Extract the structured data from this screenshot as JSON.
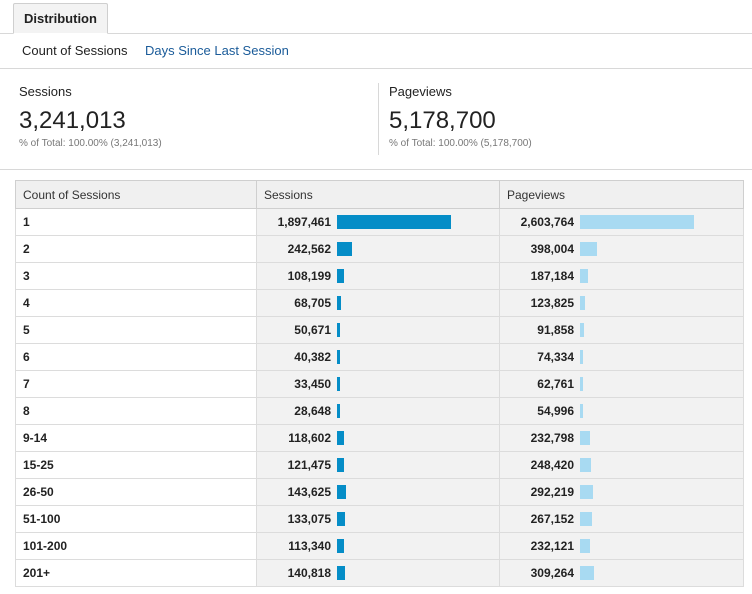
{
  "tab": {
    "label": "Distribution"
  },
  "subnav": {
    "active": "Count of Sessions",
    "link": "Days Since Last Session"
  },
  "summary": {
    "sessions": {
      "label": "Sessions",
      "value": "3,241,013",
      "total": "% of Total: 100.00% (3,241,013)"
    },
    "pageviews": {
      "label": "Pageviews",
      "value": "5,178,700",
      "total": "% of Total: 100.00% (5,178,700)"
    }
  },
  "table": {
    "headers": [
      "Count of Sessions",
      "Sessions",
      "Pageviews"
    ],
    "max_sessions": 1897461,
    "max_pageviews": 2603764,
    "rows": [
      {
        "label": "1",
        "sessions": "1,897,461",
        "sessions_n": 1897461,
        "pageviews": "2,603,764",
        "pageviews_n": 2603764
      },
      {
        "label": "2",
        "sessions": "242,562",
        "sessions_n": 242562,
        "pageviews": "398,004",
        "pageviews_n": 398004
      },
      {
        "label": "3",
        "sessions": "108,199",
        "sessions_n": 108199,
        "pageviews": "187,184",
        "pageviews_n": 187184
      },
      {
        "label": "4",
        "sessions": "68,705",
        "sessions_n": 68705,
        "pageviews": "123,825",
        "pageviews_n": 123825
      },
      {
        "label": "5",
        "sessions": "50,671",
        "sessions_n": 50671,
        "pageviews": "91,858",
        "pageviews_n": 91858
      },
      {
        "label": "6",
        "sessions": "40,382",
        "sessions_n": 40382,
        "pageviews": "74,334",
        "pageviews_n": 74334
      },
      {
        "label": "7",
        "sessions": "33,450",
        "sessions_n": 33450,
        "pageviews": "62,761",
        "pageviews_n": 62761
      },
      {
        "label": "8",
        "sessions": "28,648",
        "sessions_n": 28648,
        "pageviews": "54,996",
        "pageviews_n": 54996
      },
      {
        "label": "9-14",
        "sessions": "118,602",
        "sessions_n": 118602,
        "pageviews": "232,798",
        "pageviews_n": 232798
      },
      {
        "label": "15-25",
        "sessions": "121,475",
        "sessions_n": 121475,
        "pageviews": "248,420",
        "pageviews_n": 248420
      },
      {
        "label": "26-50",
        "sessions": "143,625",
        "sessions_n": 143625,
        "pageviews": "292,219",
        "pageviews_n": 292219
      },
      {
        "label": "51-100",
        "sessions": "133,075",
        "sessions_n": 133075,
        "pageviews": "267,152",
        "pageviews_n": 267152
      },
      {
        "label": "101-200",
        "sessions": "113,340",
        "sessions_n": 113340,
        "pageviews": "232,121",
        "pageviews_n": 232121
      },
      {
        "label": "201+",
        "sessions": "140,818",
        "sessions_n": 140818,
        "pageviews": "309,264",
        "pageviews_n": 309264
      }
    ]
  },
  "colors": {
    "sessions_bar": "#058dc7",
    "pageviews_bar": "#a8daf2",
    "link": "#1a5b99"
  }
}
